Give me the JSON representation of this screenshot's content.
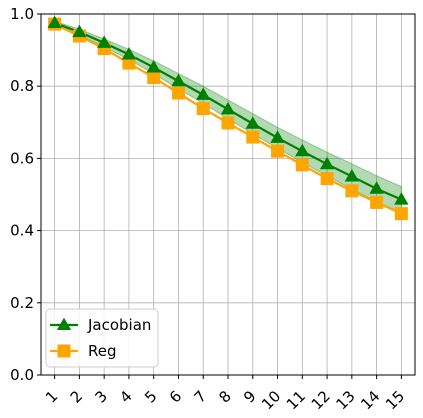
{
  "chart_data": {
    "type": "line",
    "title": "",
    "xlabel": "",
    "ylabel": "",
    "x": [
      1,
      2,
      3,
      4,
      5,
      6,
      7,
      8,
      9,
      10,
      11,
      12,
      13,
      14,
      15
    ],
    "xticks": [
      "1",
      "2",
      "3",
      "4",
      "5",
      "6",
      "7",
      "8",
      "9",
      "10",
      "11",
      "12",
      "13",
      "14",
      "15"
    ],
    "ylim": [
      0.0,
      1.0
    ],
    "yticks": [
      "0.0",
      "0.2",
      "0.4",
      "0.6",
      "0.8",
      "1.0"
    ],
    "ytick_values": [
      0.0,
      0.2,
      0.4,
      0.6,
      0.8,
      1.0
    ],
    "grid": true,
    "legend_position": "lower-left",
    "series": [
      {
        "name": "Jacobian",
        "color": "#008000",
        "marker": "triangle",
        "values": [
          0.975,
          0.95,
          0.92,
          0.888,
          0.852,
          0.814,
          0.776,
          0.736,
          0.696,
          0.657,
          0.62,
          0.584,
          0.55,
          0.516,
          0.486
        ],
        "band_lower": [
          0.97,
          0.942,
          0.909,
          0.874,
          0.834,
          0.793,
          0.752,
          0.71,
          0.668,
          0.628,
          0.589,
          0.551,
          0.515,
          0.48,
          0.45
        ],
        "band_upper": [
          0.98,
          0.958,
          0.931,
          0.902,
          0.87,
          0.835,
          0.8,
          0.762,
          0.724,
          0.686,
          0.651,
          0.617,
          0.585,
          0.552,
          0.522
        ]
      },
      {
        "name": "Reg",
        "color": "#ffa500",
        "marker": "square",
        "values": [
          0.972,
          0.939,
          0.904,
          0.864,
          0.824,
          0.781,
          0.738,
          0.698,
          0.659,
          0.62,
          0.582,
          0.544,
          0.51,
          0.478,
          0.447
        ]
      }
    ]
  }
}
